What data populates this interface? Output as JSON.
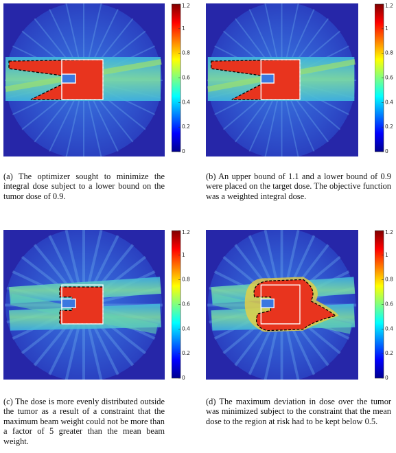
{
  "colorbar": {
    "lim": [
      0,
      1.2
    ],
    "ticks": [
      0,
      0.2,
      0.4,
      0.6,
      0.8,
      1,
      1.2
    ]
  },
  "panels": [
    {
      "label": "(a)",
      "caption": "The optimizer sought to minimize the integral dose subject to a lower bound on the tumor dose of 0.9."
    },
    {
      "label": "(b)",
      "caption": "An upper bound of 1.1 and a lower bound of 0.9 were placed on the target dose. The objective function was a weighted integral dose."
    },
    {
      "label": "(c)",
      "caption": "The dose is more evenly distributed outside the tumor as a result of a constraint that the maximum beam weight could not be more than a factor of 5 greater than the mean beam weight."
    },
    {
      "label": "(d)",
      "caption": "The maximum deviation in dose over the tumor was minimized subject to the constraint that the mean dose to the region at risk had to be kept below 0.5."
    }
  ]
}
